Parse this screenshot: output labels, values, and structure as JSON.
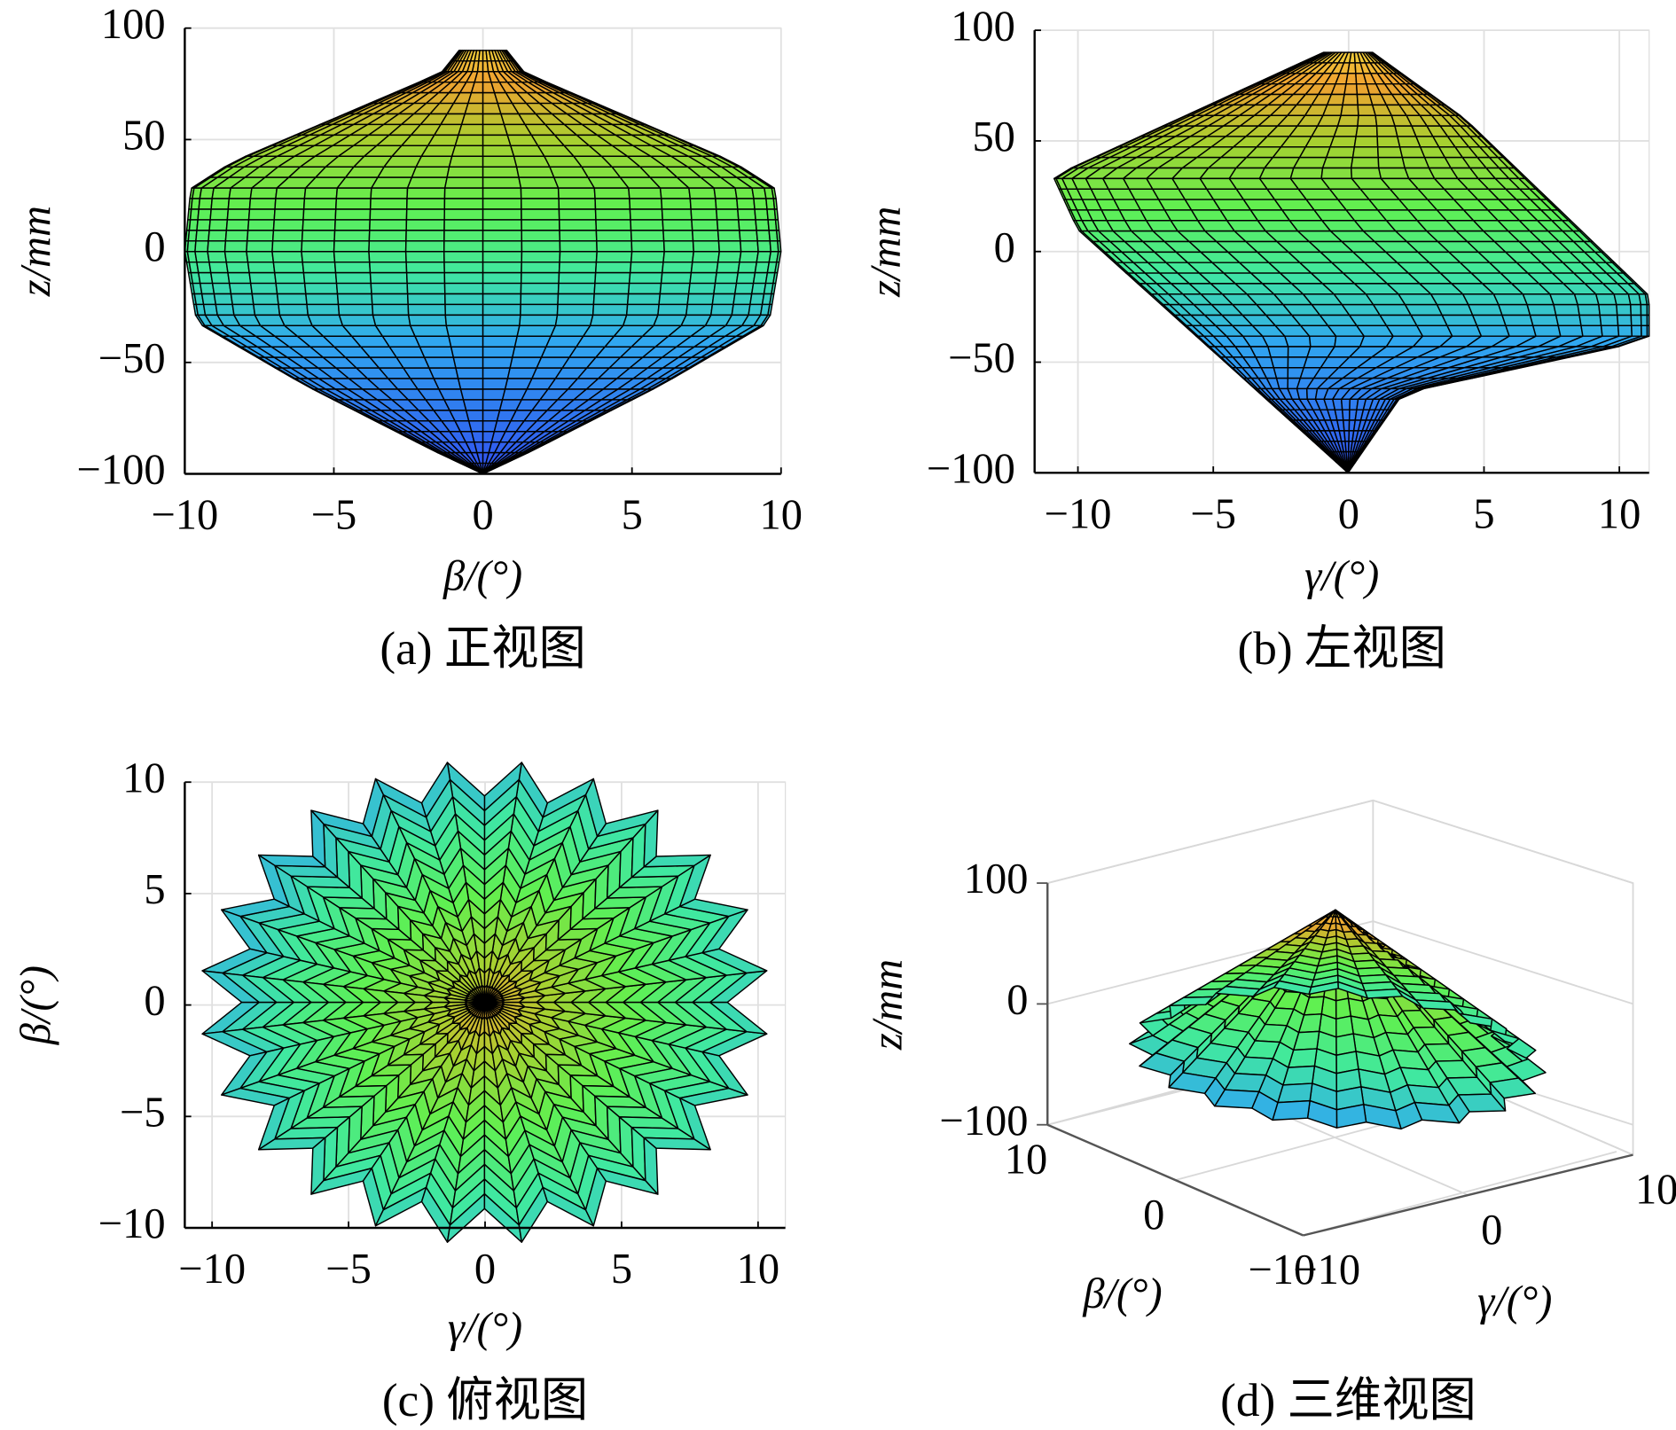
{
  "chart_data": [
    {
      "type": "surface",
      "caption": "(a) 正视图",
      "xlabel": "β/(°)",
      "ylabel": "z/mm",
      "xlim": [
        -10,
        10
      ],
      "ylim": [
        -100,
        100
      ],
      "xticks": [
        {
          "value": -10,
          "label": "−10"
        },
        {
          "value": -5,
          "label": "−5"
        },
        0,
        5,
        10
      ],
      "yticks": [
        {
          "value": -100,
          "label": "−100"
        },
        {
          "value": -50,
          "label": "−50"
        },
        0,
        50,
        100
      ],
      "grid": true
    },
    {
      "type": "surface",
      "caption": "(b) 左视图",
      "xlabel": "γ/(°)",
      "ylabel": "z/mm",
      "xlim": [
        -11.6,
        11.1
      ],
      "ylim": [
        -100,
        100
      ],
      "xticks": [
        {
          "value": -10,
          "label": "−10"
        },
        {
          "value": -5,
          "label": "−5"
        },
        0,
        5,
        10
      ],
      "yticks": [
        {
          "value": -100,
          "label": "−100"
        },
        {
          "value": -50,
          "label": "−50"
        },
        0,
        50,
        100
      ],
      "grid": true
    },
    {
      "type": "surface",
      "caption": "(c) 俯视图",
      "xlabel": "γ/(°)",
      "ylabel": "β/(°)",
      "xlim": [
        -11,
        11
      ],
      "ylim": [
        -10,
        10
      ],
      "xticks": [
        {
          "value": -10,
          "label": "−10"
        },
        {
          "value": -5,
          "label": "−5"
        },
        0,
        5,
        10
      ],
      "yticks": [
        {
          "value": -10,
          "label": "−10"
        },
        {
          "value": -5,
          "label": "−5"
        },
        0,
        5,
        10
      ],
      "grid": true
    },
    {
      "type": "surface3d",
      "caption": "(d) 三维视图",
      "xlabel": "γ/(°)",
      "ylabel": "β/(°)",
      "zlabel": "z/mm",
      "xlim": [
        -10,
        10
      ],
      "ylim": [
        -10,
        10
      ],
      "zlim": [
        -100,
        100
      ],
      "xticks": [
        {
          "value": -10,
          "label": "−10"
        },
        0,
        10
      ],
      "yticks": [
        {
          "value": -10,
          "label": "−10"
        },
        0,
        10
      ],
      "zticks": [
        {
          "value": -100,
          "label": "−100"
        },
        0,
        100
      ],
      "grid": true
    }
  ]
}
